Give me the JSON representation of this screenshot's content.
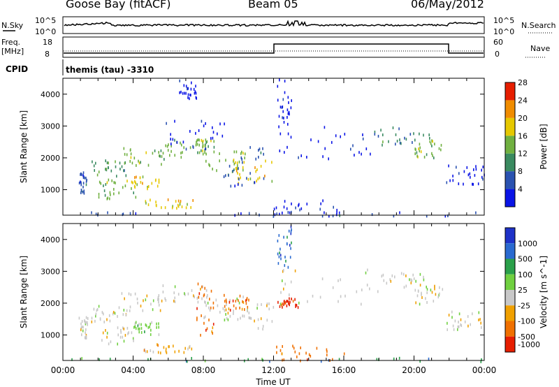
{
  "header": {
    "station": "Goose Bay (fitACF)",
    "beam": "Beam 05",
    "date": "06/May/2012"
  },
  "noise_panel": {
    "left_label": "N.Sky",
    "left_ticks": [
      "10^5",
      "10^0"
    ],
    "right_label": "N.Search",
    "right_ticks": [
      "10^5",
      "10^0"
    ]
  },
  "freq_panel": {
    "left_label_1": "Freq.",
    "left_label_2": "[MHz]",
    "left_ticks": [
      "18",
      "8"
    ],
    "right_label": "Nave",
    "right_ticks": [
      "60",
      "0"
    ]
  },
  "cpid_panel": {
    "label": "CPID",
    "text": "themis (tau) -3310"
  },
  "chart_data": [
    {
      "type": "heatmap",
      "name": "power",
      "ylabel": "Slant Range [km]",
      "yticks": [
        1000,
        2000,
        3000,
        4000
      ],
      "ylim": [
        200,
        4500
      ],
      "xlim": [
        0,
        24
      ],
      "colorbar_label": "Power [dB]",
      "colorbar_ticks": [
        "4",
        "8",
        "12",
        "16",
        "20",
        "24",
        "28"
      ],
      "colorbar_colors": [
        "#0a14e6",
        "#2a52b0",
        "#3a8a60",
        "#70b040",
        "#e6c800",
        "#f08c00",
        "#e61e00"
      ],
      "scatter_regions": [
        {
          "t": [
            0.9,
            1.4
          ],
          "r": [
            900,
            1600
          ],
          "level": 1
        },
        {
          "t": [
            1.6,
            3.6
          ],
          "r": [
            1450,
            1950
          ],
          "level": 2
        },
        {
          "t": [
            3.3,
            5.8
          ],
          "r": [
            1800,
            2350
          ],
          "level": 3
        },
        {
          "t": [
            5.5,
            8.2
          ],
          "r": [
            2050,
            2600
          ],
          "level": 3
        },
        {
          "t": [
            2.0,
            4.2
          ],
          "r": [
            750,
            1450
          ],
          "level": 3
        },
        {
          "t": [
            3.8,
            5.5
          ],
          "r": [
            1050,
            1450
          ],
          "level": 4
        },
        {
          "t": [
            4.6,
            7.4
          ],
          "r": [
            450,
            750
          ],
          "level": 4
        },
        {
          "t": [
            7.6,
            8.6
          ],
          "r": [
            2200,
            2650
          ],
          "level": 3
        },
        {
          "t": [
            8.0,
            10.4
          ],
          "r": [
            1500,
            2250
          ],
          "level": 3
        },
        {
          "t": [
            9.6,
            12.0
          ],
          "r": [
            1200,
            2050
          ],
          "level": 4
        },
        {
          "t": [
            9.0,
            11.6
          ],
          "r": [
            1150,
            2400
          ],
          "level": 1
        },
        {
          "t": [
            5.8,
            9.4
          ],
          "r": [
            2300,
            3200
          ],
          "level": 0
        },
        {
          "t": [
            6.6,
            7.6
          ],
          "r": [
            3900,
            4500
          ],
          "level": 0
        },
        {
          "t": [
            12.0,
            17.5
          ],
          "r": [
            2000,
            3100
          ],
          "level": 0
        },
        {
          "t": [
            12.2,
            13.0
          ],
          "r": [
            3000,
            4500
          ],
          "level": 0
        },
        {
          "t": [
            17.6,
            21.0
          ],
          "r": [
            2400,
            3000
          ],
          "level": 2
        },
        {
          "t": [
            20.0,
            21.6
          ],
          "r": [
            2000,
            2600
          ],
          "level": 3
        },
        {
          "t": [
            21.8,
            24.0
          ],
          "r": [
            1200,
            1800
          ],
          "level": 0
        },
        {
          "t": [
            0.2,
            24.0
          ],
          "r": [
            200,
            330
          ],
          "level": 1
        },
        {
          "t": [
            12.0,
            16.0
          ],
          "r": [
            200,
            700
          ],
          "level": 0
        }
      ]
    },
    {
      "type": "heatmap",
      "name": "velocity",
      "ylabel": "Slant Range [km]",
      "yticks": [
        1000,
        2000,
        3000,
        4000
      ],
      "ylim": [
        200,
        4500
      ],
      "xlim": [
        0,
        24
      ],
      "xlabel": "Time UT",
      "xticks": [
        "00:00",
        "04:00",
        "08:00",
        "12:00",
        "16:00",
        "20:00",
        "00:00"
      ],
      "colorbar_label": "Velocity [m s^-1]",
      "colorbar_ticks": [
        "1000",
        "500",
        "100",
        "25",
        "-25",
        "-100",
        "-500",
        "-1000"
      ],
      "colorbar_colors": [
        "#1e32c8",
        "#2a6ad0",
        "#2aa04a",
        "#70d040",
        "#c8c8c8",
        "#f0a000",
        "#f07000",
        "#e61e00"
      ],
      "scatter_regions": [
        {
          "t": [
            0.9,
            1.4
          ],
          "r": [
            900,
            1600
          ],
          "level": 4
        },
        {
          "t": [
            1.6,
            3.6
          ],
          "r": [
            1450,
            1950
          ],
          "level": 4
        },
        {
          "t": [
            3.3,
            5.8
          ],
          "r": [
            1800,
            2350
          ],
          "level": 4
        },
        {
          "t": [
            5.5,
            8.2
          ],
          "r": [
            2050,
            2600
          ],
          "level": 4
        },
        {
          "t": [
            2.0,
            4.2
          ],
          "r": [
            750,
            1450
          ],
          "level": 4
        },
        {
          "t": [
            3.8,
            5.5
          ],
          "r": [
            1050,
            1450
          ],
          "level": 3
        },
        {
          "t": [
            4.6,
            7.4
          ],
          "r": [
            450,
            750
          ],
          "level": 5
        },
        {
          "t": [
            7.6,
            8.6
          ],
          "r": [
            1000,
            2650
          ],
          "level": 6
        },
        {
          "t": [
            8.0,
            10.4
          ],
          "r": [
            1500,
            2250
          ],
          "level": 4
        },
        {
          "t": [
            9.6,
            12.0
          ],
          "r": [
            1200,
            2050
          ],
          "level": 4
        },
        {
          "t": [
            9.0,
            10.6
          ],
          "r": [
            1800,
            2300
          ],
          "level": 6
        },
        {
          "t": [
            12.2,
            13.4
          ],
          "r": [
            1900,
            2200
          ],
          "level": 7
        },
        {
          "t": [
            12.0,
            17.5
          ],
          "r": [
            2000,
            3100
          ],
          "level": 4
        },
        {
          "t": [
            12.2,
            13.0
          ],
          "r": [
            3000,
            4500
          ],
          "level": 1
        },
        {
          "t": [
            17.6,
            21.0
          ],
          "r": [
            2400,
            3000
          ],
          "level": 4
        },
        {
          "t": [
            20.0,
            21.6
          ],
          "r": [
            2000,
            2600
          ],
          "level": 4
        },
        {
          "t": [
            21.8,
            24.0
          ],
          "r": [
            1200,
            1800
          ],
          "level": 4
        },
        {
          "t": [
            0.2,
            24.0
          ],
          "r": [
            200,
            330
          ],
          "level": 2
        },
        {
          "t": [
            12.0,
            16.0
          ],
          "r": [
            200,
            700
          ],
          "level": 6
        }
      ]
    }
  ]
}
